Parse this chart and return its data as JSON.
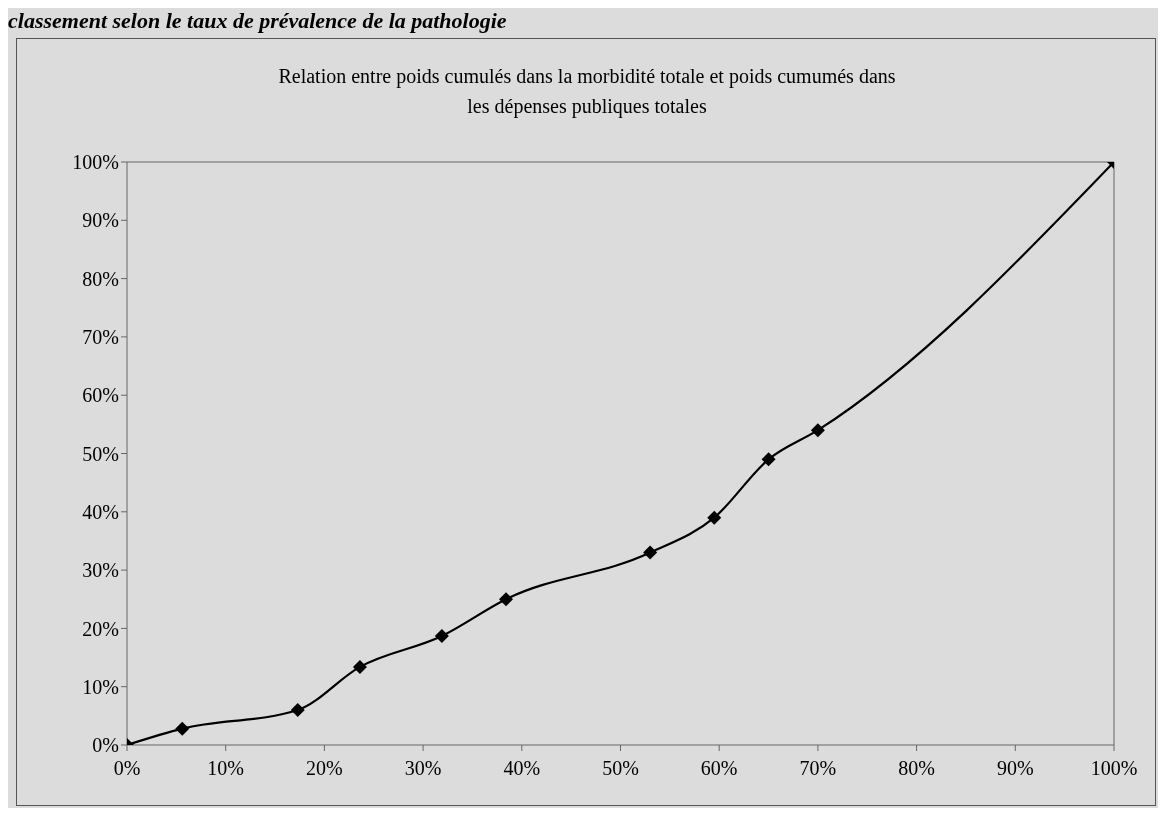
{
  "chart_data": {
    "type": "line",
    "title": "Relation entre poids cumulés dans la morbidité totale et poids cumumés dans les dépenses publiques totales",
    "annotations": [
      "classement selon le taux de prévalence de la pathologie"
    ],
    "x": [
      0,
      5.6,
      17.3,
      23.6,
      31.9,
      38.4,
      53,
      59.5,
      65,
      70,
      100
    ],
    "series": [
      {
        "color": "#000000",
        "values": [
          0,
          2.8,
          6,
          13.4,
          18.7,
          25,
          33,
          39,
          49,
          54,
          100
        ]
      }
    ],
    "xlim": [
      0,
      100
    ],
    "xticks": [
      {
        "value": 0,
        "label": "0%"
      },
      {
        "value": 10,
        "label": "10%"
      },
      {
        "value": 20,
        "label": "20%"
      },
      {
        "value": 30,
        "label": "30%"
      },
      {
        "value": 40,
        "label": "40%"
      },
      {
        "value": 50,
        "label": "50%"
      },
      {
        "value": 60,
        "label": "60%"
      },
      {
        "value": 70,
        "label": "70%"
      },
      {
        "value": 80,
        "label": "80%"
      },
      {
        "value": 90,
        "label": "90%"
      },
      {
        "value": 100,
        "label": "100%"
      }
    ],
    "ylim": [
      0,
      100
    ],
    "yticks": [
      {
        "value": 0,
        "label": "0%"
      },
      {
        "value": 10,
        "label": "10%"
      },
      {
        "value": 20,
        "label": "20%"
      },
      {
        "value": 30,
        "label": "30%"
      },
      {
        "value": 40,
        "label": "40%"
      },
      {
        "value": 50,
        "label": "50%"
      },
      {
        "value": 60,
        "label": "60%"
      },
      {
        "value": 70,
        "label": "70%"
      },
      {
        "value": 80,
        "label": "80%"
      },
      {
        "value": 90,
        "label": "90%"
      },
      {
        "value": 100,
        "label": "100%"
      }
    ],
    "grid": false,
    "legend": false,
    "marker": "diamond",
    "line_style": "solid"
  }
}
